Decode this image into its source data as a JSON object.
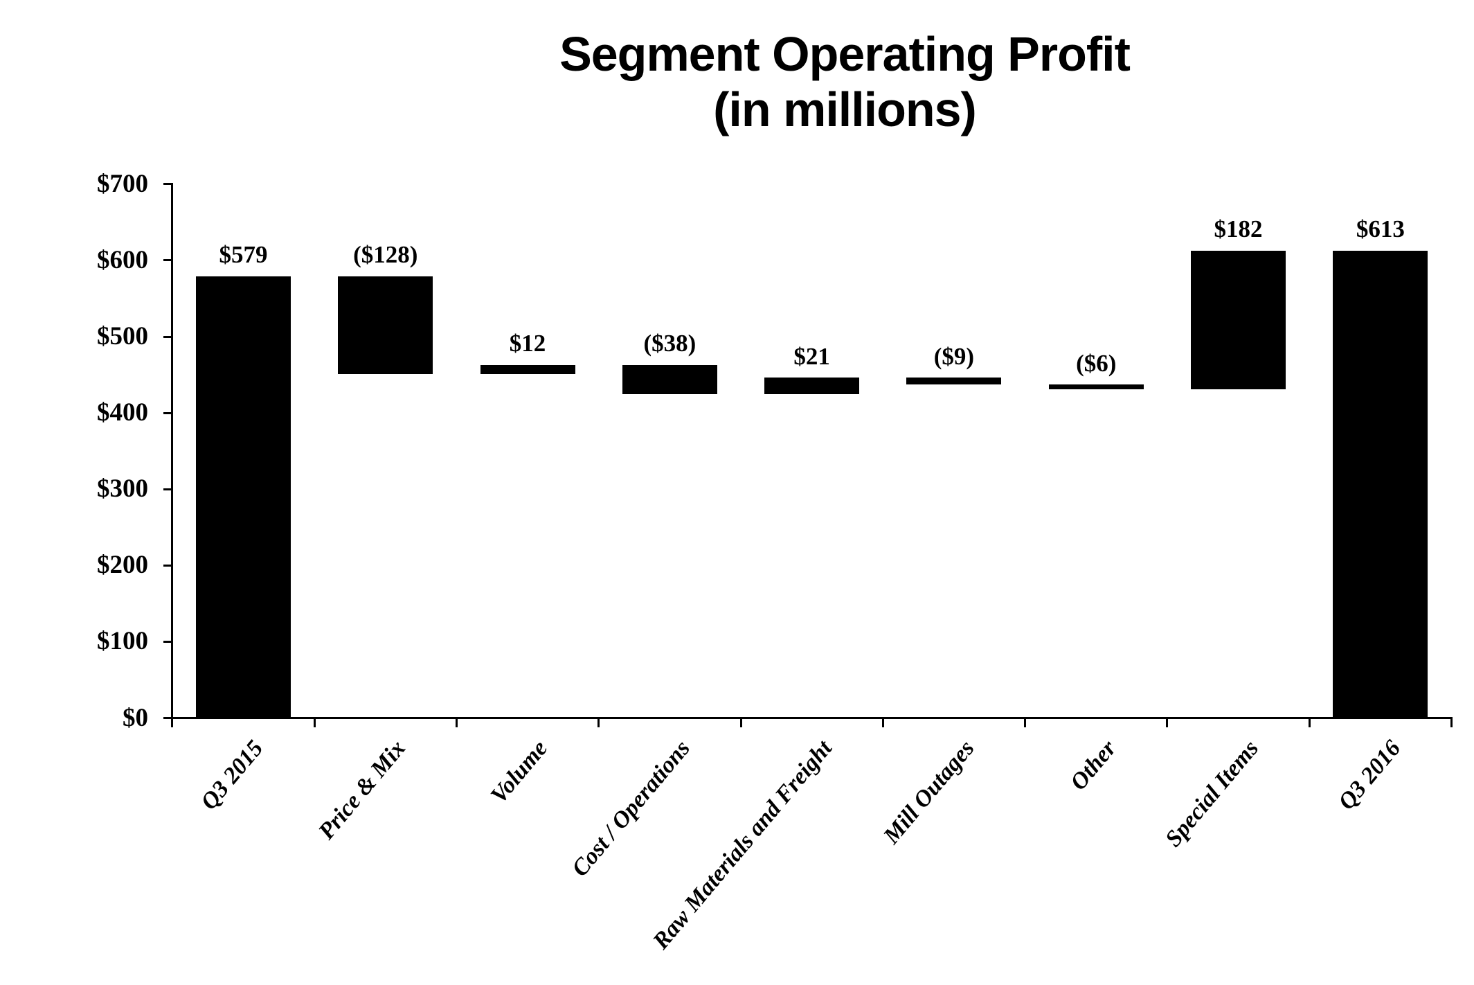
{
  "title": {
    "line1": "Segment Operating Profit",
    "line2": "(in millions)"
  },
  "colors": {
    "bar": "#000000",
    "axis": "#000000",
    "text": "#000000",
    "background": "#ffffff"
  },
  "chart_data": {
    "type": "bar",
    "subtype": "waterfall",
    "title": "Segment Operating Profit (in millions)",
    "xlabel": "",
    "ylabel": "",
    "categories": [
      "Q3 2015",
      "Price & Mix",
      "Volume",
      "Cost / Operations",
      "Raw Materials and Freight",
      "Mill Outages",
      "Other",
      "Special Items",
      "Q3 2016"
    ],
    "values": [
      579,
      -128,
      12,
      -38,
      21,
      -9,
      -6,
      182,
      613
    ],
    "data_labels": [
      "$579",
      "($128)",
      "$12",
      "($38)",
      "$21",
      "($9)",
      "($6)",
      "$182",
      "$613"
    ],
    "bar_ranges": [
      [
        0,
        579
      ],
      [
        451,
        579
      ],
      [
        451,
        463
      ],
      [
        425,
        463
      ],
      [
        425,
        446
      ],
      [
        437,
        446
      ],
      [
        431,
        437
      ],
      [
        431,
        613
      ],
      [
        0,
        613
      ]
    ],
    "running_totals": [
      579,
      451,
      463,
      425,
      446,
      437,
      431,
      613,
      613
    ],
    "ylim": [
      0,
      700
    ],
    "ytick_interval": 100,
    "ytick_labels": [
      "$0",
      "$100",
      "$200",
      "$300",
      "$400",
      "$500",
      "$600",
      "$700"
    ],
    "grid": false,
    "legend": false,
    "bar_color": "#000000",
    "x_label_rotation_deg": -50
  }
}
